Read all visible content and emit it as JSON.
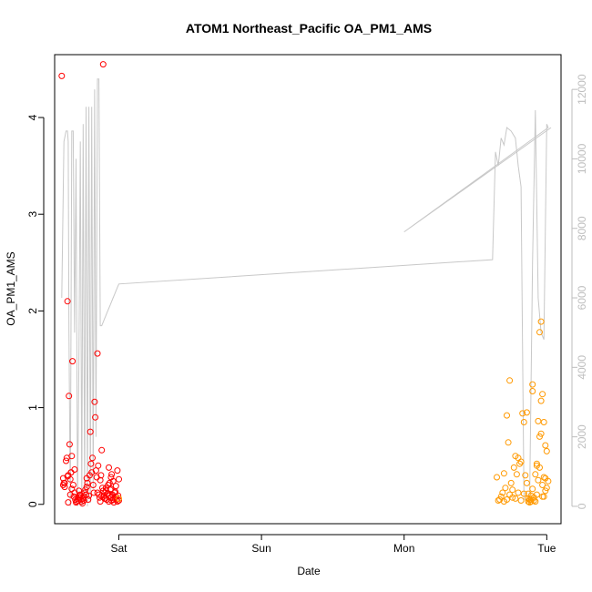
{
  "chart_data": {
    "type": "scatter",
    "title": "ATOM1 Northeast_Pacific OA_PM1_AMS",
    "xlabel": "Date",
    "ylabel": "OA_PM1_AMS",
    "x_ticks": [
      "Sat",
      "Sun",
      "Mon",
      "Tue"
    ],
    "y_ticks": [
      0,
      1,
      2,
      3,
      4
    ],
    "y2_ticks": [
      0,
      2000,
      4000,
      6000,
      8000,
      10000,
      12000
    ],
    "xlim": [
      -0.45,
      3.1
    ],
    "ylim": [
      -0.2,
      4.65
    ],
    "y2lim": [
      -500,
      13000
    ],
    "colors": {
      "series_red": "#ff0000",
      "series_orange": "#ff9900",
      "altitude_line": "#c8c8c8",
      "axis": "#000000",
      "right_axis": "#bebebe"
    },
    "grid": false,
    "series": [
      {
        "color": "#ff0000",
        "marker": "open-circle",
        "x": [
          -0.4,
          -0.39,
          -0.385,
          -0.38,
          -0.37,
          -0.365,
          -0.36,
          -0.355,
          -0.35,
          -0.345,
          -0.34,
          -0.335,
          -0.33,
          -0.325,
          -0.32,
          -0.315,
          -0.31,
          -0.305,
          -0.3,
          -0.295,
          -0.29,
          -0.285,
          -0.28,
          -0.275,
          -0.27,
          -0.265,
          -0.26,
          -0.255,
          -0.25,
          -0.245,
          -0.24,
          -0.235,
          -0.23,
          -0.225,
          -0.22,
          -0.215,
          -0.21,
          -0.205,
          -0.2,
          -0.195,
          -0.19,
          -0.185,
          -0.18,
          -0.175,
          -0.17,
          -0.165,
          -0.16,
          -0.155,
          -0.15,
          -0.145,
          -0.14,
          -0.135,
          -0.13,
          -0.125,
          -0.12,
          -0.115,
          -0.11,
          -0.105,
          -0.1,
          -0.095,
          -0.09,
          -0.085,
          -0.08,
          -0.075,
          -0.07,
          -0.065,
          -0.06,
          -0.055,
          -0.05,
          -0.045,
          -0.04,
          -0.035,
          -0.03,
          -0.025,
          -0.02,
          -0.015,
          -0.01,
          -0.005,
          0.0,
          -0.39,
          -0.355,
          -0.34,
          -0.335,
          -0.31,
          -0.28,
          -0.245,
          -0.225,
          -0.09,
          -0.085,
          -0.075,
          -0.07,
          -0.065,
          -0.06,
          -0.055,
          -0.05,
          -0.04,
          -0.03,
          -0.02,
          -0.01,
          0.0,
          -0.38,
          -0.36,
          -0.33,
          -0.27,
          -0.15,
          -0.13,
          -0.12,
          -0.11,
          -0.1
        ],
        "y": [
          4.43,
          0.27,
          0.22,
          0.18,
          0.45,
          0.48,
          2.1,
          0.3,
          1.12,
          0.62,
          0.26,
          0.33,
          0.5,
          1.48,
          0.2,
          0.08,
          0.12,
          0.05,
          0.02,
          0.03,
          0.06,
          0.04,
          0.07,
          0.09,
          0.1,
          0.05,
          0.03,
          0.01,
          0.06,
          0.08,
          0.12,
          0.15,
          0.1,
          0.18,
          0.22,
          0.05,
          0.09,
          0.3,
          0.75,
          0.42,
          0.33,
          0.48,
          0.2,
          0.12,
          1.06,
          0.9,
          0.35,
          0.28,
          1.56,
          0.4,
          0.1,
          0.07,
          0.25,
          0.3,
          0.56,
          0.17,
          4.55,
          0.08,
          0.12,
          0.06,
          0.14,
          0.05,
          0.11,
          0.2,
          0.03,
          0.09,
          0.07,
          0.16,
          0.04,
          0.1,
          0.05,
          0.02,
          0.06,
          0.13,
          0.08,
          0.05,
          0.03,
          0.09,
          0.04,
          0.2,
          0.02,
          0.1,
          0.33,
          0.36,
          0.14,
          0.04,
          0.27,
          0.17,
          0.05,
          0.11,
          0.38,
          0.22,
          0.15,
          0.28,
          0.31,
          0.24,
          0.12,
          0.19,
          0.35,
          0.26,
          0.22,
          0.29,
          0.16,
          0.07,
          0.12,
          0.03,
          0.09,
          0.14,
          0.06
        ]
      },
      {
        "color": "#ff9900",
        "marker": "open-circle",
        "x": [
          0.0,
          2.65,
          2.66,
          2.67,
          2.68,
          2.69,
          2.7,
          2.71,
          2.72,
          2.73,
          2.74,
          2.75,
          2.76,
          2.77,
          2.78,
          2.79,
          2.8,
          2.81,
          2.82,
          2.83,
          2.84,
          2.85,
          2.86,
          2.87,
          2.88,
          2.89,
          2.9,
          2.91,
          2.92,
          2.93,
          2.94,
          2.95,
          2.96,
          2.97,
          2.98,
          2.99,
          3.0,
          3.01,
          2.87,
          2.88,
          2.89,
          2.9,
          2.91,
          2.92,
          2.93,
          2.95,
          2.96,
          2.97,
          2.98,
          2.99,
          3.0,
          2.87,
          2.89,
          2.91,
          2.94,
          2.96,
          2.98,
          2.7,
          2.74,
          2.78,
          2.82,
          2.86,
          2.9,
          2.93,
          2.95,
          2.97,
          2.99,
          2.72,
          2.76,
          2.8,
          2.84
        ],
        "y": [
          0.06,
          0.28,
          0.04,
          0.05,
          0.08,
          0.12,
          0.03,
          0.17,
          0.92,
          0.64,
          0.1,
          0.22,
          0.07,
          0.38,
          0.5,
          0.31,
          0.12,
          0.42,
          0.04,
          0.94,
          0.85,
          0.3,
          0.22,
          0.06,
          0.02,
          0.05,
          1.17,
          0.07,
          0.31,
          0.42,
          0.86,
          0.7,
          1.89,
          0.2,
          0.08,
          0.61,
          0.55,
          0.24,
          0.03,
          0.05,
          0.09,
          0.16,
          0.04,
          0.03,
          0.1,
          1.78,
          1.07,
          1.14,
          0.85,
          0.14,
          0.17,
          0.11,
          0.03,
          0.07,
          0.25,
          0.73,
          0.28,
          0.32,
          1.28,
          0.06,
          0.44,
          0.95,
          1.24,
          0.4,
          0.38,
          0.08,
          0.27,
          0.05,
          0.15,
          0.48,
          0.11
        ]
      },
      {
        "name": "",
        "color": "#c8c8c8",
        "type": "line",
        "axis": "right",
        "x": [
          -0.4,
          -0.385,
          -0.37,
          -0.36,
          -0.355,
          -0.35,
          -0.34,
          -0.33,
          -0.32,
          -0.31,
          -0.3,
          -0.29,
          -0.28,
          -0.27,
          -0.26,
          -0.25,
          -0.24,
          -0.23,
          -0.22,
          -0.21,
          -0.2,
          -0.19,
          -0.18,
          -0.17,
          -0.16,
          -0.15,
          -0.14,
          -0.13,
          -0.12,
          -0.11,
          -0.1,
          -0.09,
          -0.08,
          -0.07,
          -0.06,
          -0.05,
          -0.04,
          -0.03,
          -0.02,
          -0.01,
          0.0,
          2.62,
          2.64,
          2.66,
          2.68,
          2.7,
          2.72,
          2.75,
          2.78,
          2.8,
          2.82,
          2.84,
          2.86,
          2.88,
          2.9,
          2.92,
          2.94,
          2.96,
          2.98,
          3.0,
          3.01,
          2.0,
          3.03
        ],
        "y": [
          6000,
          10500,
          10800,
          10800,
          10500,
          5000,
          0,
          10800,
          10800,
          5000,
          10000,
          0,
          4000,
          10500,
          0,
          11000,
          100,
          11500,
          0,
          11500,
          100,
          11500,
          500,
          12000,
          2000,
          12300,
          12300,
          5200,
          5200,
          5300,
          5400,
          5500,
          5600,
          5700,
          5800,
          5900,
          6000,
          6100,
          6200,
          6300,
          6400,
          7100,
          10200,
          9800,
          10600,
          10400,
          10900,
          10800,
          10600,
          9800,
          9200,
          200,
          200,
          100,
          7000,
          11400,
          6000,
          5000,
          4800,
          11000,
          10900,
          7900,
          10900
        ]
      }
    ]
  }
}
